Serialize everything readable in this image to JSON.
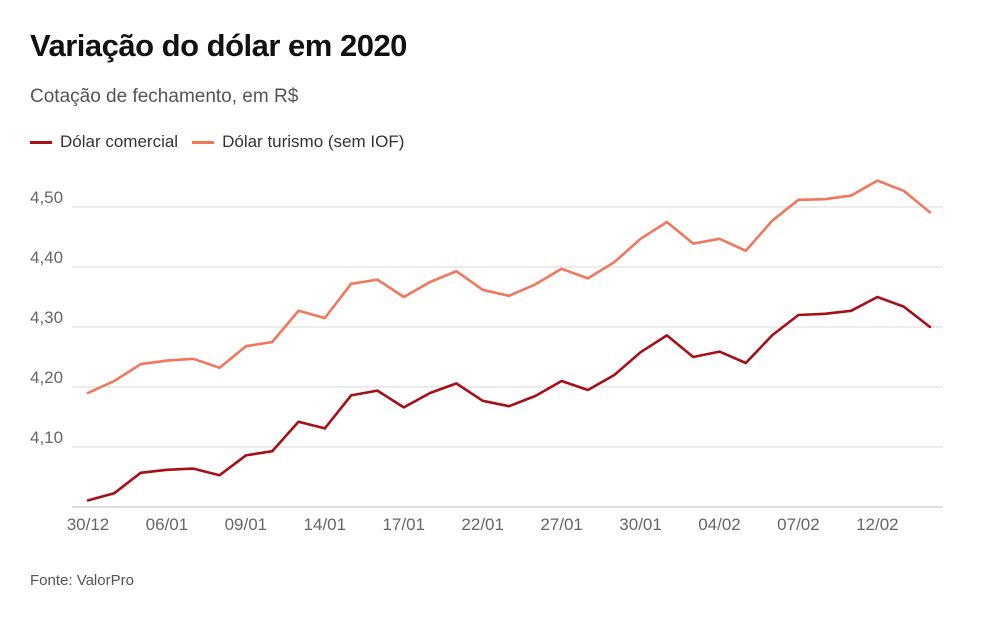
{
  "header": {
    "title": "Variação do dólar em 2020",
    "subtitle": "Cotação de fechamento, em R$"
  },
  "footer": {
    "source": "Fonte: ValorPro"
  },
  "colors": {
    "comercial": "#a50f15",
    "turismo": "#f0775a",
    "grid": "#d9d9d9",
    "axis_text": "#666666"
  },
  "chart_data": {
    "type": "line",
    "title": "Variação do dólar em 2020",
    "subtitle": "Cotação de fechamento, em R$",
    "xlabel": "",
    "ylabel": "",
    "ylim": [
      4.0,
      4.55
    ],
    "x_tick_labels": [
      "30/12",
      "06/01",
      "09/01",
      "14/01",
      "17/01",
      "22/01",
      "27/01",
      "30/01",
      "04/02",
      "07/02",
      "12/02"
    ],
    "x_tick_positions": [
      0,
      3,
      6,
      9,
      12,
      15,
      18,
      21,
      24,
      27,
      30
    ],
    "y_ticks": [
      4.1,
      4.2,
      4.3,
      4.4,
      4.5
    ],
    "y_tick_labels": [
      "4,10",
      "4,20",
      "4,30",
      "4,40",
      "4,50"
    ],
    "grid": true,
    "legend_position": "top-left",
    "series": [
      {
        "name": "Dólar comercial",
        "values": [
          4.011,
          4.023,
          4.057,
          4.062,
          4.064,
          4.053,
          4.086,
          4.093,
          4.142,
          4.131,
          4.186,
          4.194,
          4.166,
          4.19,
          4.206,
          4.177,
          4.168,
          4.185,
          4.21,
          4.195,
          4.22,
          4.258,
          4.286,
          4.25,
          4.259,
          4.24,
          4.286,
          4.32,
          4.322,
          4.327,
          4.35,
          4.334,
          4.3
        ]
      },
      {
        "name": "Dólar turismo (sem IOF)",
        "values": [
          4.19,
          4.21,
          4.238,
          4.244,
          4.247,
          4.232,
          4.268,
          4.275,
          4.327,
          4.315,
          4.372,
          4.379,
          4.35,
          4.375,
          4.393,
          4.362,
          4.352,
          4.371,
          4.397,
          4.381,
          4.408,
          4.447,
          4.475,
          4.439,
          4.447,
          4.427,
          4.477,
          4.512,
          4.513,
          4.519,
          4.544,
          4.527,
          4.491
        ]
      }
    ]
  }
}
